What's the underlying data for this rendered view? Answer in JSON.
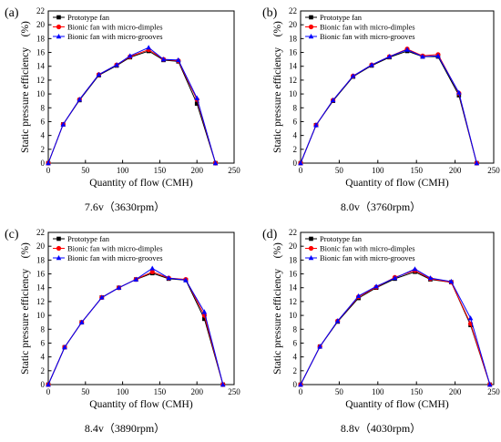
{
  "chart_data": [
    {
      "type": "line",
      "panel_label": "(a)",
      "caption": "7.6v（3630rpm）",
      "xlabel": "Quantity of flow (CMH)",
      "ylabel": "Static pressure efficiency　(%)",
      "xlim": [
        0,
        250
      ],
      "ylim": [
        0,
        22
      ],
      "xticks": [
        "0",
        "50",
        "100",
        "150",
        "200",
        "250"
      ],
      "yticks": [
        "0",
        "2",
        "4",
        "6",
        "8",
        "10",
        "12",
        "14",
        "16",
        "18",
        "20",
        "22"
      ],
      "legend_position": "top-left",
      "series": [
        {
          "name": "Prototype fan",
          "x": [
            0,
            20,
            42,
            68,
            92,
            110,
            135,
            155,
            175,
            200,
            225
          ],
          "y": [
            0,
            5.6,
            9.1,
            12.7,
            14.1,
            15.3,
            16.2,
            14.9,
            14.7,
            8.6,
            0
          ]
        },
        {
          "name": "Bionic fan with micro-dimples",
          "x": [
            0,
            20,
            42,
            68,
            92,
            110,
            135,
            155,
            175,
            200,
            225
          ],
          "y": [
            0,
            5.6,
            9.2,
            12.8,
            14.2,
            15.4,
            16.4,
            15.0,
            14.8,
            9.2,
            0
          ]
        },
        {
          "name": "Bionic fan with micro-grooves",
          "x": [
            0,
            20,
            42,
            68,
            92,
            110,
            135,
            155,
            175,
            200,
            225
          ],
          "y": [
            0,
            5.6,
            9.2,
            12.8,
            14.2,
            15.5,
            16.7,
            15.0,
            14.9,
            9.4,
            0
          ]
        }
      ]
    },
    {
      "type": "line",
      "panel_label": "(b)",
      "caption": "8.0v（3760rpm）",
      "xlabel": "Quantity of flow (CMH)",
      "ylabel": "Static pressure efficiency　(%)",
      "xlim": [
        0,
        250
      ],
      "ylim": [
        0,
        22
      ],
      "xticks": [
        "0",
        "50",
        "100",
        "150",
        "200",
        "250"
      ],
      "yticks": [
        "0",
        "2",
        "4",
        "6",
        "8",
        "10",
        "12",
        "14",
        "16",
        "18",
        "20",
        "22"
      ],
      "legend_position": "top-left",
      "series": [
        {
          "name": "Prototype fan",
          "x": [
            0,
            20,
            42,
            68,
            92,
            115,
            138,
            158,
            178,
            205,
            228
          ],
          "y": [
            0,
            5.5,
            9.0,
            12.5,
            14.1,
            15.3,
            16.2,
            15.4,
            15.4,
            9.8,
            0
          ]
        },
        {
          "name": "Bionic fan with micro-dimples",
          "x": [
            0,
            20,
            42,
            68,
            92,
            115,
            138,
            158,
            178,
            205,
            228
          ],
          "y": [
            0,
            5.5,
            9.1,
            12.6,
            14.2,
            15.4,
            16.5,
            15.5,
            15.7,
            10.1,
            0
          ]
        },
        {
          "name": "Bionic fan with micro-grooves",
          "x": [
            0,
            20,
            42,
            68,
            92,
            115,
            138,
            158,
            178,
            205,
            228
          ],
          "y": [
            0,
            5.5,
            9.1,
            12.6,
            14.2,
            15.4,
            16.4,
            15.4,
            15.5,
            10.2,
            0
          ]
        }
      ]
    },
    {
      "type": "line",
      "panel_label": "(c)",
      "caption": "8.4v（3890rpm）",
      "xlabel": "Quantity of flow (CMH)",
      "ylabel": "Static pressure efficiency　(%)",
      "xlim": [
        0,
        250
      ],
      "ylim": [
        0,
        22
      ],
      "xticks": [
        "0",
        "50",
        "100",
        "150",
        "200",
        "250"
      ],
      "yticks": [
        "0",
        "2",
        "4",
        "6",
        "8",
        "10",
        "12",
        "14",
        "16",
        "18",
        "20",
        "22"
      ],
      "legend_position": "top-left",
      "series": [
        {
          "name": "Prototype fan",
          "x": [
            0,
            22,
            45,
            72,
            95,
            118,
            140,
            162,
            185,
            210,
            235
          ],
          "y": [
            0,
            5.4,
            9.0,
            12.6,
            14.0,
            15.2,
            16.1,
            15.3,
            15.1,
            9.5,
            0
          ]
        },
        {
          "name": "Bionic fan with micro-dimples",
          "x": [
            0,
            22,
            45,
            72,
            95,
            118,
            140,
            162,
            185,
            210,
            235
          ],
          "y": [
            0,
            5.4,
            9.0,
            12.6,
            14.0,
            15.2,
            16.3,
            15.4,
            15.2,
            10.0,
            0
          ]
        },
        {
          "name": "Bionic fan with micro-grooves",
          "x": [
            0,
            22,
            45,
            72,
            95,
            118,
            140,
            162,
            185,
            210,
            235
          ],
          "y": [
            0,
            5.4,
            9.0,
            12.6,
            14.0,
            15.2,
            16.8,
            15.4,
            15.1,
            10.5,
            0
          ]
        }
      ]
    },
    {
      "type": "line",
      "panel_label": "(d)",
      "caption": "8.8v（4030rpm）",
      "xlabel": "Quantity of flow (CMH)",
      "ylabel": "Static pressure efficiency　(%)",
      "xlim": [
        0,
        250
      ],
      "ylim": [
        0,
        22
      ],
      "xticks": [
        "0",
        "50",
        "100",
        "150",
        "200",
        "250"
      ],
      "yticks": [
        "0",
        "2",
        "4",
        "6",
        "8",
        "10",
        "12",
        "14",
        "16",
        "18",
        "20",
        "22"
      ],
      "legend_position": "top-left",
      "series": [
        {
          "name": "Prototype fan",
          "x": [
            0,
            25,
            48,
            75,
            98,
            122,
            148,
            168,
            195,
            220,
            245
          ],
          "y": [
            0,
            5.5,
            9.1,
            12.5,
            14.0,
            15.3,
            16.3,
            15.2,
            14.8,
            8.6,
            0
          ]
        },
        {
          "name": "Bionic fan with micro-dimples",
          "x": [
            0,
            25,
            48,
            75,
            98,
            122,
            148,
            168,
            195,
            220,
            245
          ],
          "y": [
            0,
            5.5,
            9.2,
            12.7,
            14.1,
            15.5,
            16.5,
            15.3,
            14.8,
            8.8,
            0
          ]
        },
        {
          "name": "Bionic fan with micro-grooves",
          "x": [
            0,
            25,
            48,
            75,
            98,
            122,
            148,
            168,
            195,
            220,
            245
          ],
          "y": [
            0,
            5.5,
            9.2,
            12.8,
            14.2,
            15.4,
            16.7,
            15.4,
            14.9,
            9.6,
            0
          ]
        }
      ]
    }
  ],
  "series_styles": [
    {
      "color": "#000000",
      "marker": "square"
    },
    {
      "color": "#ff0000",
      "marker": "circle"
    },
    {
      "color": "#0000ff",
      "marker": "triangle"
    }
  ]
}
